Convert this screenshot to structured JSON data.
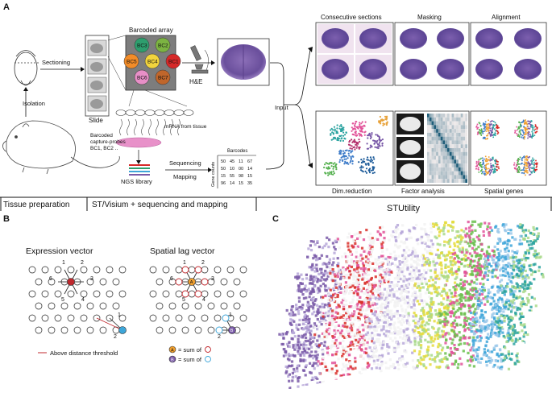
{
  "panel_a": {
    "letter": "A",
    "labels": {
      "sectioning": "Sectioning",
      "isolation": "Isolation",
      "slide": "Slide",
      "barcoded_array": "Barcoded array",
      "he": "H&E",
      "mrna": "mRNA from tissue",
      "capture1": "Barcoded",
      "capture2": "capture-probes",
      "capture3": "BC1, BC2 ..",
      "ngs": "NGS library",
      "sequencing": "Sequencing",
      "mapping": "Mapping",
      "barcodes": "Barcodes",
      "gene_counts": "Gene counts",
      "input": "Input",
      "consecutive": "Consecutive sections",
      "masking": "Masking",
      "alignment": "Alignment",
      "dimred": "Dim.reduction",
      "factor": "Factor analysis",
      "spatial_genes": "Spatial genes"
    },
    "barcodes": [
      "BC1",
      "BC2",
      "BC3",
      "BC4",
      "BC5",
      "BC6",
      "BC7"
    ],
    "barcode_colors": [
      "#d62828",
      "#7cb342",
      "#2e9e6e",
      "#f2d43d",
      "#f28c28",
      "#e88fc7",
      "#c0662b"
    ],
    "count_matrix": [
      [
        "50",
        "45",
        "11",
        "67"
      ],
      [
        "50",
        "10",
        "00",
        "14"
      ],
      [
        "15",
        "55",
        "98",
        "15"
      ],
      [
        "96",
        "14",
        "15",
        "35"
      ]
    ],
    "bottom_sections": {
      "tissue": "Tissue preparation",
      "st": "ST/Visium + sequencing and mapping",
      "stutility": "STUtility"
    }
  },
  "panel_b": {
    "letter": "B",
    "expression_title": "Expression vector",
    "lag_title": "Spatial lag vector",
    "neighbor_numbers": [
      "1",
      "2",
      "3",
      "4",
      "5",
      "6"
    ],
    "legend_threshold": "Above distance threshold",
    "legend_a": "= sum of",
    "legend_b": "= sum of",
    "marker_a": "A",
    "marker_b": "B",
    "edge_labels": [
      "1",
      "2"
    ]
  },
  "panel_c": {
    "letter": "C"
  },
  "colors": {
    "red": "#c0282d",
    "cyan": "#3ea6d9",
    "orange": "#f0a030",
    "purple": "#7a5aa8"
  }
}
